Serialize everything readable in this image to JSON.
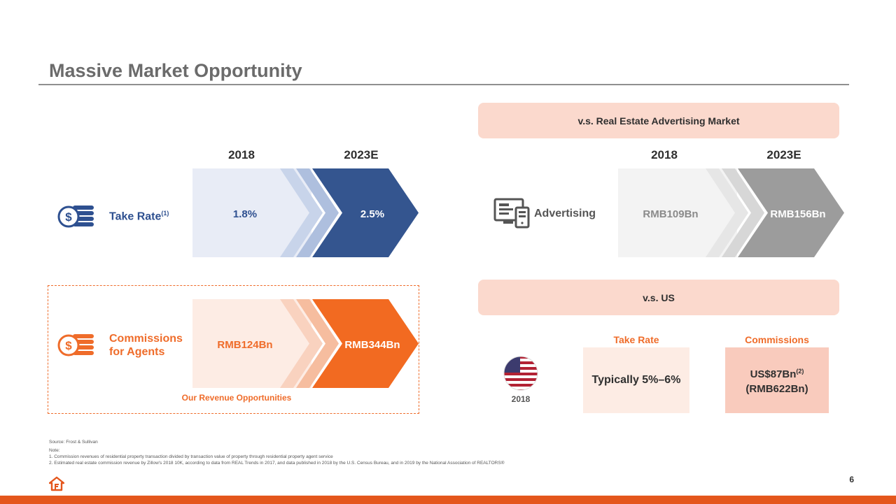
{
  "title": "Massive Market Opportunity",
  "left": {
    "year_a": "2018",
    "year_b": "2023E",
    "take_rate": {
      "label": "Take Rate",
      "sup": "(1)",
      "value_a": "1.8%",
      "value_b": "2.5%"
    },
    "commissions": {
      "label_line1": "Commissions",
      "label_line2": "for Agents",
      "value_a": "RMB124Bn",
      "value_b": "RMB344Bn"
    },
    "revenue_caption": "Our Revenue Opportunities"
  },
  "right": {
    "advertising_header": "v.s. Real Estate Advertising Market",
    "year_a": "2018",
    "year_b": "2023E",
    "advertising": {
      "label": "Advertising",
      "value_a": "RMB109Bn",
      "value_b": "RMB156Bn"
    },
    "us_header": "v.s. US",
    "us_year": "2018",
    "take_rate_title": "Take Rate",
    "take_rate_value": "Typically 5%–6%",
    "commissions_title": "Commissions",
    "commissions_value_line1": "US$87Bn",
    "commissions_sup": "(2)",
    "commissions_value_line2": "(RMB622Bn)"
  },
  "footnotes": {
    "source": "Source: Frost & Sullivan",
    "note": "Note:",
    "n1": "1.   Commission revenues of residential property transaction divided by transaction value of property through residential property agent service",
    "n2": "2.   Estimated real estate commission revenue by Zillow's 2018 10K, according to data from REAL Trends in 2017, and data published in 2018 by the U.S. Census Bureau, and in 2019 by the National Association of REALTORS®"
  },
  "page_number": "6",
  "colors": {
    "blue": "#2e5090",
    "orange": "#ef6c2a",
    "gray": "#9a9a9a",
    "pill": "#fbd9cd",
    "bar": "#e4561c"
  },
  "icons": [
    "coins-icon",
    "advertising-devices-icon",
    "us-flag-icon",
    "company-logo-icon"
  ]
}
